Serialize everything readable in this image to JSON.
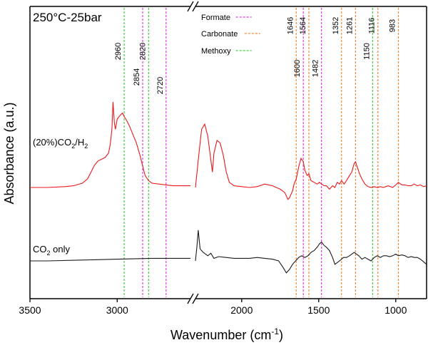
{
  "chart_data": {
    "type": "line",
    "title": "250°C-25bar",
    "xlabel": "Wavenumber (cm⁻¹)",
    "xlabel_main": "Wavenumber (cm",
    "xlabel_sup": "-1",
    "xlabel_close": ")",
    "ylabel": "Absorbance (a.u.)",
    "x_axis": {
      "reversed": true,
      "broken": true,
      "segments": [
        [
          3500,
          2580
        ],
        [
          2300,
          800
        ]
      ],
      "ticks": [
        {
          "value": 3500,
          "label": "3500"
        },
        {
          "value": 3000,
          "label": "3000"
        },
        {
          "value": 2000,
          "label": "2000"
        },
        {
          "value": 1500,
          "label": "1500"
        },
        {
          "value": 1000,
          "label": "1000"
        }
      ]
    },
    "legend": [
      {
        "label": "Formate",
        "color": "#e040e0"
      },
      {
        "label": "Carbonate",
        "color": "#f08a3c"
      },
      {
        "label": "Methoxy",
        "color": "#3ed23e"
      }
    ],
    "reference_lines": [
      {
        "value": 2960,
        "label": "2960",
        "group": "Methoxy",
        "color": "#3ed23e"
      },
      {
        "value": 2854,
        "label": "2854",
        "group": "Formate",
        "color": "#e040e0"
      },
      {
        "value": 2820,
        "label": "2820",
        "group": "Methoxy",
        "color": "#3ed23e"
      },
      {
        "value": 2720,
        "label": "2720",
        "group": "Formate",
        "color": "#e040e0"
      },
      {
        "value": 1646,
        "label": "1646",
        "group": "Carbonate",
        "color": "#f08a3c"
      },
      {
        "value": 1600,
        "label": "1600",
        "group": "Formate",
        "color": "#e040e0"
      },
      {
        "value": 1564,
        "label": "1564",
        "group": "Carbonate",
        "color": "#f08a3c"
      },
      {
        "value": 1482,
        "label": "1482",
        "group": "Formate",
        "color": "#e040e0"
      },
      {
        "value": 1352,
        "label": "1352",
        "group": "Carbonate",
        "color": "#f08a3c"
      },
      {
        "value": 1261,
        "label": "1261",
        "group": "Carbonate",
        "color": "#f08a3c"
      },
      {
        "value": 1150,
        "label": "1150",
        "group": "Methoxy",
        "color": "#3ed23e"
      },
      {
        "value": 1116,
        "label": "1116",
        "group": "Carbonate",
        "color": "#f08a3c"
      },
      {
        "value": 983,
        "label": "983",
        "group": "Carbonate",
        "color": "#f08a3c"
      }
    ],
    "series": [
      {
        "name": "(20%)CO2/H2",
        "label_parts": [
          "(20%)CO",
          "2",
          "/H",
          "2"
        ],
        "color": "#e8191c",
        "points": [
          [
            3500,
            0.0
          ],
          [
            3400,
            0.0
          ],
          [
            3300,
            0.01
          ],
          [
            3250,
            0.02
          ],
          [
            3200,
            0.05
          ],
          [
            3170,
            0.1
          ],
          [
            3150,
            0.18
          ],
          [
            3130,
            0.26
          ],
          [
            3110,
            0.31
          ],
          [
            3090,
            0.33
          ],
          [
            3070,
            0.35
          ],
          [
            3050,
            0.4
          ],
          [
            3040,
            0.5
          ],
          [
            3030,
            0.68
          ],
          [
            3024,
            1.0
          ],
          [
            3016,
            0.75
          ],
          [
            3010,
            0.68
          ],
          [
            3000,
            0.8
          ],
          [
            2985,
            0.84
          ],
          [
            2970,
            0.87
          ],
          [
            2960,
            0.83
          ],
          [
            2945,
            0.78
          ],
          [
            2930,
            0.72
          ],
          [
            2910,
            0.62
          ],
          [
            2890,
            0.52
          ],
          [
            2870,
            0.38
          ],
          [
            2854,
            0.25
          ],
          [
            2840,
            0.14
          ],
          [
            2820,
            0.08
          ],
          [
            2800,
            0.05
          ],
          [
            2760,
            0.04
          ],
          [
            2720,
            0.03
          ],
          [
            2680,
            0.02
          ],
          [
            2620,
            0.02
          ],
          [
            2580,
            0.02
          ],
          [
            2300,
            0.0
          ],
          [
            2280,
            0.35
          ],
          [
            2260,
            0.68
          ],
          [
            2240,
            0.74
          ],
          [
            2220,
            0.6
          ],
          [
            2200,
            0.32
          ],
          [
            2190,
            0.18
          ],
          [
            2180,
            0.4
          ],
          [
            2160,
            0.55
          ],
          [
            2140,
            0.52
          ],
          [
            2120,
            0.38
          ],
          [
            2100,
            0.18
          ],
          [
            2080,
            0.06
          ],
          [
            2050,
            0.02
          ],
          [
            2000,
            0.01
          ],
          [
            1950,
            0.0
          ],
          [
            1900,
            0.01
          ],
          [
            1850,
            0.04
          ],
          [
            1800,
            0.02
          ],
          [
            1750,
            -0.02
          ],
          [
            1720,
            -0.06
          ],
          [
            1700,
            -0.14
          ],
          [
            1690,
            -0.12
          ],
          [
            1670,
            -0.04
          ],
          [
            1660,
            0.04
          ],
          [
            1646,
            0.1
          ],
          [
            1630,
            0.24
          ],
          [
            1615,
            0.34
          ],
          [
            1600,
            0.3
          ],
          [
            1590,
            0.2
          ],
          [
            1575,
            0.14
          ],
          [
            1564,
            0.16
          ],
          [
            1550,
            0.08
          ],
          [
            1530,
            0.06
          ],
          [
            1510,
            0.04
          ],
          [
            1495,
            0.06
          ],
          [
            1482,
            0.04
          ],
          [
            1465,
            0.02
          ],
          [
            1450,
            0.02
          ],
          [
            1430,
            -0.02
          ],
          [
            1410,
            0.02
          ],
          [
            1395,
            0.0
          ],
          [
            1380,
            0.06
          ],
          [
            1365,
            0.04
          ],
          [
            1352,
            0.08
          ],
          [
            1335,
            0.04
          ],
          [
            1320,
            0.08
          ],
          [
            1300,
            0.14
          ],
          [
            1285,
            0.18
          ],
          [
            1270,
            0.28
          ],
          [
            1261,
            0.3
          ],
          [
            1250,
            0.24
          ],
          [
            1235,
            0.16
          ],
          [
            1220,
            0.1
          ],
          [
            1200,
            0.04
          ],
          [
            1180,
            0.01
          ],
          [
            1160,
            0.0
          ],
          [
            1140,
            0.01
          ],
          [
            1120,
            0.0
          ],
          [
            1100,
            0.01
          ],
          [
            1080,
            0.0
          ],
          [
            1050,
            0.02
          ],
          [
            1020,
            0.0
          ],
          [
            1000,
            0.03
          ],
          [
            983,
            0.06
          ],
          [
            960,
            0.03
          ],
          [
            940,
            0.03
          ],
          [
            920,
            0.02
          ],
          [
            900,
            0.02
          ],
          [
            880,
            0.04
          ],
          [
            860,
            0.02
          ],
          [
            840,
            0.03
          ],
          [
            820,
            0.01
          ],
          [
            800,
            0.02
          ]
        ]
      },
      {
        "name": "CO2 only",
        "label_parts": [
          "CO",
          "2",
          " only",
          ""
        ],
        "color": "#1a1a1a",
        "points": [
          [
            3500,
            0.0
          ],
          [
            3400,
            0.0
          ],
          [
            3200,
            0.01
          ],
          [
            3000,
            0.02
          ],
          [
            2800,
            0.03
          ],
          [
            2600,
            0.03
          ],
          [
            2580,
            0.03
          ],
          [
            2300,
            0.0
          ],
          [
            2290,
            0.18
          ],
          [
            2282,
            0.36
          ],
          [
            2270,
            0.14
          ],
          [
            2250,
            0.1
          ],
          [
            2220,
            0.06
          ],
          [
            2200,
            0.09
          ],
          [
            2180,
            0.03
          ],
          [
            2150,
            0.05
          ],
          [
            2100,
            0.04
          ],
          [
            2050,
            0.03
          ],
          [
            2000,
            0.03
          ],
          [
            1950,
            0.03
          ],
          [
            1900,
            0.04
          ],
          [
            1850,
            0.03
          ],
          [
            1800,
            0.02
          ],
          [
            1760,
            0.0
          ],
          [
            1730,
            -0.08
          ],
          [
            1710,
            -0.14
          ],
          [
            1700,
            -0.12
          ],
          [
            1690,
            -0.1
          ],
          [
            1670,
            -0.04
          ],
          [
            1650,
            0.0
          ],
          [
            1630,
            0.04
          ],
          [
            1610,
            0.06
          ],
          [
            1590,
            0.04
          ],
          [
            1570,
            0.06
          ],
          [
            1550,
            0.1
          ],
          [
            1530,
            0.12
          ],
          [
            1510,
            0.16
          ],
          [
            1495,
            0.2
          ],
          [
            1482,
            0.22
          ],
          [
            1465,
            0.18
          ],
          [
            1450,
            0.16
          ],
          [
            1430,
            0.12
          ],
          [
            1410,
            0.04
          ],
          [
            1395,
            -0.04
          ],
          [
            1380,
            -0.02
          ],
          [
            1365,
            0.0
          ],
          [
            1340,
            0.04
          ],
          [
            1320,
            0.04
          ],
          [
            1300,
            0.06
          ],
          [
            1285,
            0.08
          ],
          [
            1270,
            0.1
          ],
          [
            1255,
            0.08
          ],
          [
            1240,
            0.06
          ],
          [
            1220,
            0.02
          ],
          [
            1200,
            0.04
          ],
          [
            1180,
            0.02
          ],
          [
            1160,
            0.0
          ],
          [
            1140,
            0.04
          ],
          [
            1120,
            0.06
          ],
          [
            1100,
            0.04
          ],
          [
            1080,
            0.06
          ],
          [
            1060,
            0.06
          ],
          [
            1040,
            0.05
          ],
          [
            1020,
            0.06
          ],
          [
            1000,
            0.08
          ],
          [
            983,
            0.06
          ],
          [
            960,
            0.07
          ],
          [
            940,
            0.06
          ],
          [
            920,
            0.04
          ],
          [
            900,
            0.05
          ],
          [
            880,
            0.04
          ],
          [
            860,
            0.04
          ],
          [
            840,
            0.02
          ],
          [
            820,
            -0.01
          ],
          [
            800,
            -0.04
          ]
        ]
      }
    ]
  }
}
